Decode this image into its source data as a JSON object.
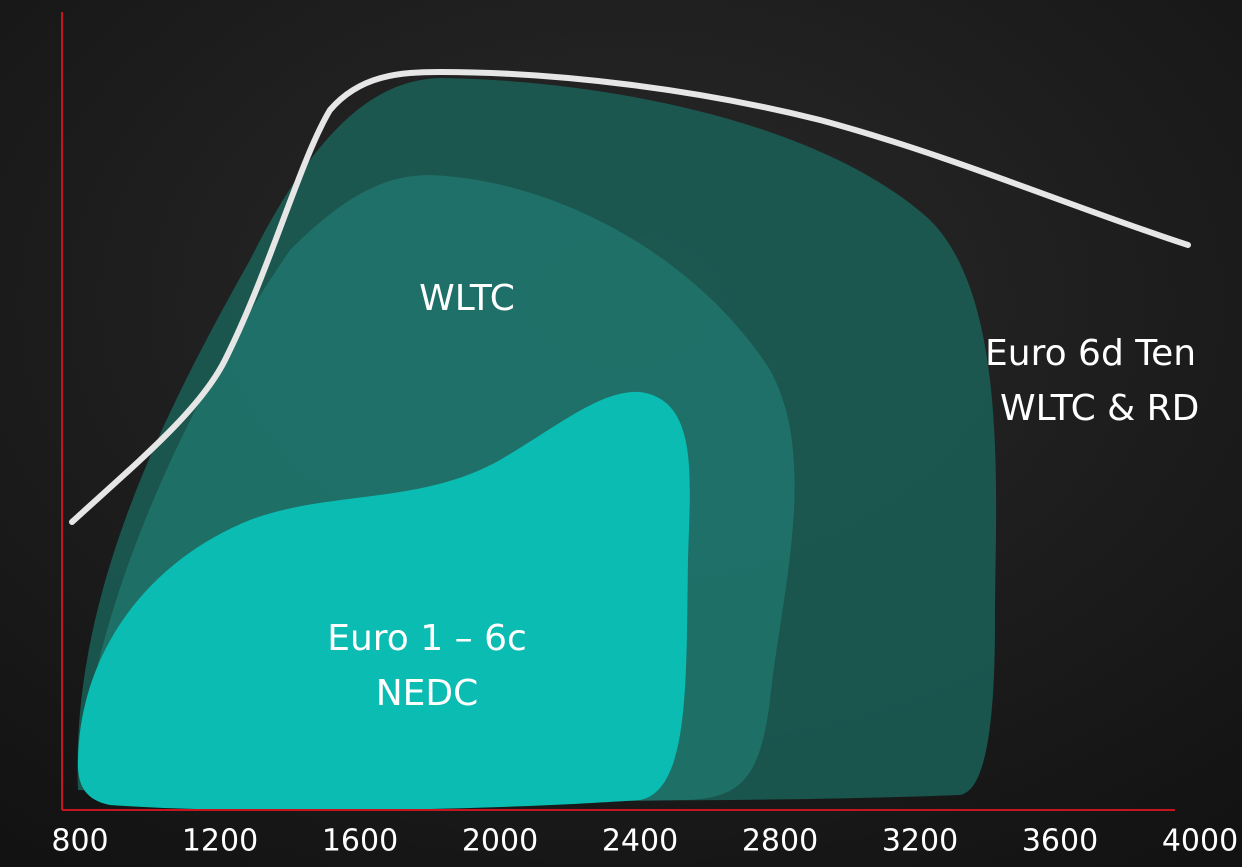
{
  "x_axis": {
    "ticks": [
      800,
      1200,
      1600,
      2000,
      2400,
      2800,
      3200,
      3600,
      4000
    ]
  },
  "regions": [
    {
      "lines": [
        "Euro 6d Ten",
        "WLTC & RD"
      ]
    },
    {
      "lines": [
        "WLTC"
      ]
    },
    {
      "lines": [
        "Euro 1 – 6c",
        "NEDC"
      ]
    }
  ]
}
